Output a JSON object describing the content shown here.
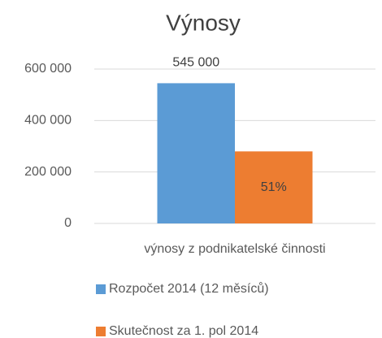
{
  "chart_data": {
    "type": "bar",
    "title": "Výnosy",
    "categories": [
      "výnosy z podnikatelské činnosti"
    ],
    "series": [
      {
        "name": "Rozpočet 2014 (12 měsíců)",
        "color": "#5b9bd5",
        "values": [
          545000
        ],
        "value_labels": [
          "545 000"
        ]
      },
      {
        "name": "Skutečnost za 1. pol 2014",
        "color": "#ed7d31",
        "values": [
          280000
        ],
        "value_labels": [
          "51%"
        ]
      }
    ],
    "ylim": [
      0,
      600000
    ],
    "yticks": [
      {
        "value": 0,
        "label": "0"
      },
      {
        "value": 200000,
        "label": "200 000"
      },
      {
        "value": 400000,
        "label": "400 000"
      },
      {
        "value": 600000,
        "label": "600 000"
      }
    ],
    "grid": true,
    "legend": "bottom"
  }
}
